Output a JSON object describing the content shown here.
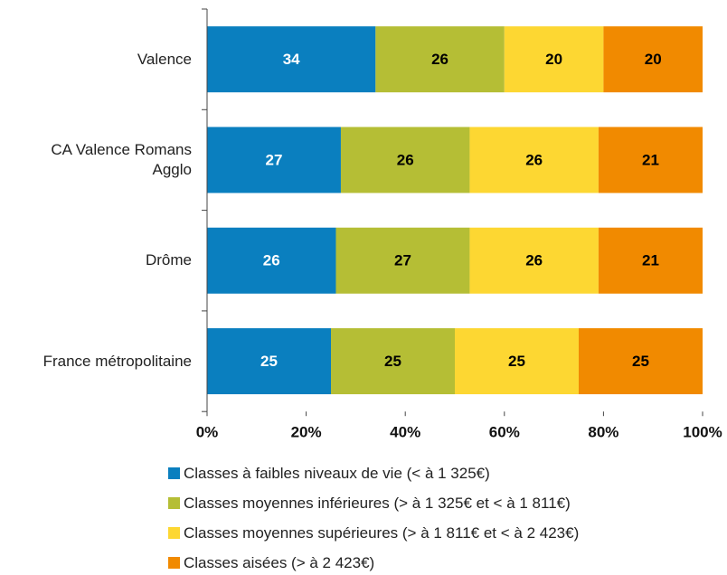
{
  "chart_data": {
    "type": "stacked-bar-horizontal",
    "categories": [
      "Valence",
      "CA Valence Romans Agglo",
      "Drôme",
      "France métropolitaine"
    ],
    "series": [
      {
        "name": "Classes à faibles niveaux de vie (< à 1 325€)",
        "color": "#0a7fbf",
        "label_color": "#ffffff",
        "values": [
          34,
          27,
          26,
          25
        ]
      },
      {
        "name": "Classes moyennes inférieures (> à 1 325€ et < à 1 811€)",
        "color": "#b5be35",
        "label_color": "#000000",
        "values": [
          26,
          26,
          27,
          25
        ]
      },
      {
        "name": "Classes moyennes supérieures (> à 1 811€ et < à 2 423€)",
        "color": "#fdd732",
        "label_color": "#000000",
        "values": [
          20,
          26,
          26,
          25
        ]
      },
      {
        "name": "Classes aisées (> à 2 423€)",
        "color": "#f18a00",
        "label_color": "#000000",
        "values": [
          20,
          21,
          21,
          25
        ]
      }
    ],
    "xlim": [
      0,
      100
    ],
    "xticks": [
      {
        "value": 0,
        "label": "0%"
      },
      {
        "value": 20,
        "label": "20%"
      },
      {
        "value": 40,
        "label": "40%"
      },
      {
        "value": 60,
        "label": "60%"
      },
      {
        "value": 80,
        "label": "80%"
      },
      {
        "value": 100,
        "label": "100%"
      }
    ],
    "legend": "bottom"
  }
}
